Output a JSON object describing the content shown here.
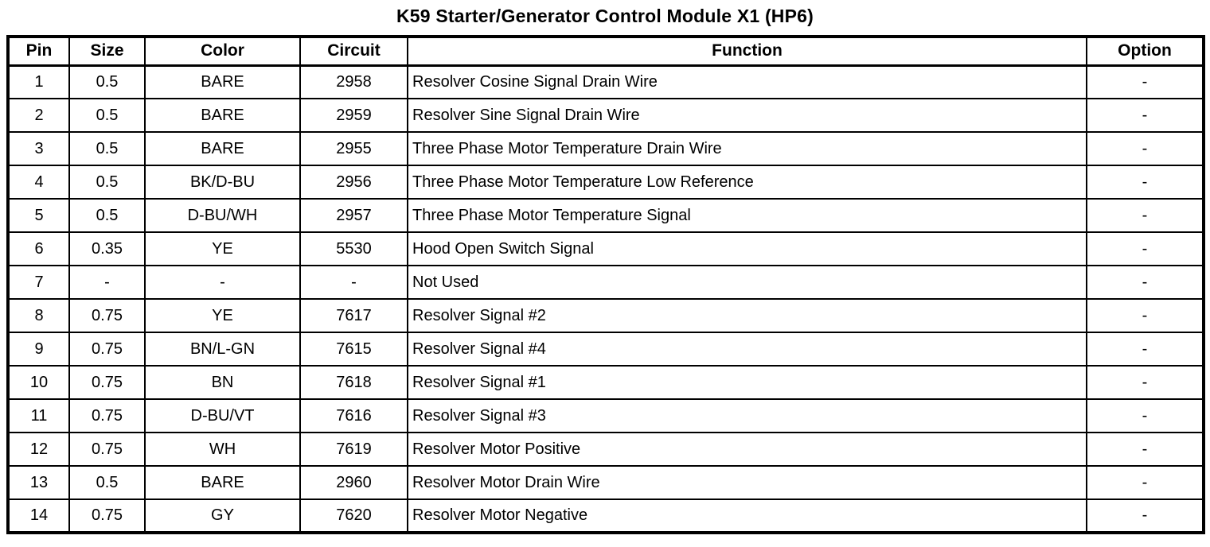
{
  "page_title": "K59 Starter/Generator Control Module X1 (HP6)",
  "table": {
    "columns": [
      {
        "key": "pin",
        "label": "Pin"
      },
      {
        "key": "size",
        "label": "Size"
      },
      {
        "key": "color",
        "label": "Color"
      },
      {
        "key": "circuit",
        "label": "Circuit"
      },
      {
        "key": "function",
        "label": "Function"
      },
      {
        "key": "option",
        "label": "Option"
      }
    ],
    "rows": [
      {
        "pin": "1",
        "size": "0.5",
        "color": "BARE",
        "circuit": "2958",
        "function": "Resolver Cosine Signal Drain Wire",
        "option": "-"
      },
      {
        "pin": "2",
        "size": "0.5",
        "color": "BARE",
        "circuit": "2959",
        "function": "Resolver Sine Signal Drain Wire",
        "option": "-"
      },
      {
        "pin": "3",
        "size": "0.5",
        "color": "BARE",
        "circuit": "2955",
        "function": "Three Phase Motor Temperature Drain Wire",
        "option": "-"
      },
      {
        "pin": "4",
        "size": "0.5",
        "color": "BK/D-BU",
        "circuit": "2956",
        "function": "Three Phase Motor Temperature Low Reference",
        "option": "-"
      },
      {
        "pin": "5",
        "size": "0.5",
        "color": "D-BU/WH",
        "circuit": "2957",
        "function": "Three Phase Motor Temperature Signal",
        "option": "-"
      },
      {
        "pin": "6",
        "size": "0.35",
        "color": "YE",
        "circuit": "5530",
        "function": "Hood Open Switch Signal",
        "option": "-"
      },
      {
        "pin": "7",
        "size": "-",
        "color": "-",
        "circuit": "-",
        "function": "Not Used",
        "option": "-"
      },
      {
        "pin": "8",
        "size": "0.75",
        "color": "YE",
        "circuit": "7617",
        "function": "Resolver Signal #2",
        "option": "-"
      },
      {
        "pin": "9",
        "size": "0.75",
        "color": "BN/L-GN",
        "circuit": "7615",
        "function": "Resolver Signal #4",
        "option": "-"
      },
      {
        "pin": "10",
        "size": "0.75",
        "color": "BN",
        "circuit": "7618",
        "function": "Resolver Signal #1",
        "option": "-"
      },
      {
        "pin": "11",
        "size": "0.75",
        "color": "D-BU/VT",
        "circuit": "7616",
        "function": "Resolver Signal #3",
        "option": "-"
      },
      {
        "pin": "12",
        "size": "0.75",
        "color": "WH",
        "circuit": "7619",
        "function": "Resolver Motor Positive",
        "option": "-"
      },
      {
        "pin": "13",
        "size": "0.5",
        "color": "BARE",
        "circuit": "2960",
        "function": "Resolver Motor Drain Wire",
        "option": "-"
      },
      {
        "pin": "14",
        "size": "0.75",
        "color": "GY",
        "circuit": "7620",
        "function": "Resolver Motor Negative",
        "option": "-"
      }
    ]
  }
}
